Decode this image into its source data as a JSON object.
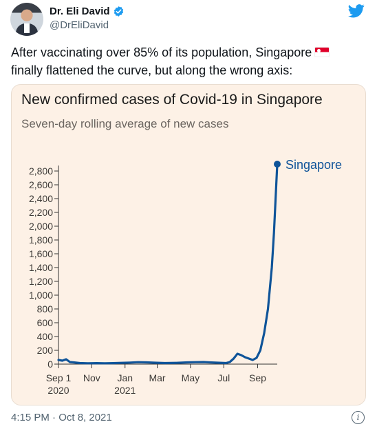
{
  "author": {
    "name": "Dr. Eli David",
    "handle": "@DrEliDavid",
    "avatar_icon": "avatar-photo",
    "verified_icon": "verified-badge-icon",
    "verified_color": "#1d9bf0"
  },
  "brand": {
    "logo_icon": "twitter-bird-icon",
    "color": "#1d9bf0"
  },
  "tweet": {
    "line1": "After vaccinating over 85% of its population, Singapore",
    "flag_icon": "singapore-flag-icon",
    "line2": "finally flattened the curve, but along the wrong axis:"
  },
  "footer": {
    "timestamp": "4:15 PM · Oct 8, 2021",
    "info_icon": "info-icon",
    "info_glyph": "i"
  },
  "chart_data": {
    "type": "line",
    "title": "New confirmed cases of Covid-19 in Singapore",
    "subtitle": "Seven-day rolling average of new cases",
    "ylim": [
      0,
      2800
    ],
    "yticks": [
      0,
      200,
      400,
      600,
      800,
      1000,
      1200,
      1400,
      1600,
      1800,
      2000,
      2200,
      2400,
      2600,
      2800
    ],
    "ytick_labels": [
      "0",
      "200",
      "400",
      "600",
      "800",
      "1,000",
      "1,200",
      "1,400",
      "1,600",
      "1,800",
      "2,000",
      "2,200",
      "2,400",
      "2,600",
      "2,800"
    ],
    "xlim": [
      "2020-09-01",
      "2021-10-07"
    ],
    "xticks": [
      {
        "date": "2020-09-01",
        "label": "Sep 1",
        "sublabel": "2020"
      },
      {
        "date": "2020-11-01",
        "label": "Nov",
        "sublabel": ""
      },
      {
        "date": "2021-01-01",
        "label": "Jan",
        "sublabel": "2021"
      },
      {
        "date": "2021-03-01",
        "label": "Mar",
        "sublabel": ""
      },
      {
        "date": "2021-05-01",
        "label": "May",
        "sublabel": ""
      },
      {
        "date": "2021-07-01",
        "label": "Jul",
        "sublabel": ""
      },
      {
        "date": "2021-09-01",
        "label": "Sep",
        "sublabel": ""
      }
    ],
    "grid": false,
    "line_color": "#0f5499",
    "series": [
      {
        "name": "Singapore",
        "x": [
          "2020-09-01",
          "2020-09-08",
          "2020-09-15",
          "2020-09-22",
          "2020-09-29",
          "2020-10-10",
          "2020-10-25",
          "2020-11-10",
          "2020-11-25",
          "2020-12-10",
          "2020-12-25",
          "2021-01-10",
          "2021-01-25",
          "2021-02-10",
          "2021-02-25",
          "2021-03-15",
          "2021-04-05",
          "2021-04-25",
          "2021-05-10",
          "2021-05-25",
          "2021-06-05",
          "2021-06-20",
          "2021-07-05",
          "2021-07-12",
          "2021-07-19",
          "2021-07-26",
          "2021-08-02",
          "2021-08-09",
          "2021-08-16",
          "2021-08-23",
          "2021-08-30",
          "2021-09-06",
          "2021-09-13",
          "2021-09-20",
          "2021-09-27",
          "2021-10-01",
          "2021-10-04",
          "2021-10-07"
        ],
        "y": [
          60,
          50,
          70,
          30,
          25,
          15,
          12,
          14,
          12,
          14,
          18,
          22,
          28,
          25,
          20,
          15,
          18,
          25,
          28,
          30,
          25,
          20,
          15,
          30,
          80,
          150,
          130,
          100,
          80,
          60,
          90,
          200,
          450,
          800,
          1400,
          1900,
          2400,
          2900
        ]
      }
    ],
    "end_label": "Singapore"
  }
}
